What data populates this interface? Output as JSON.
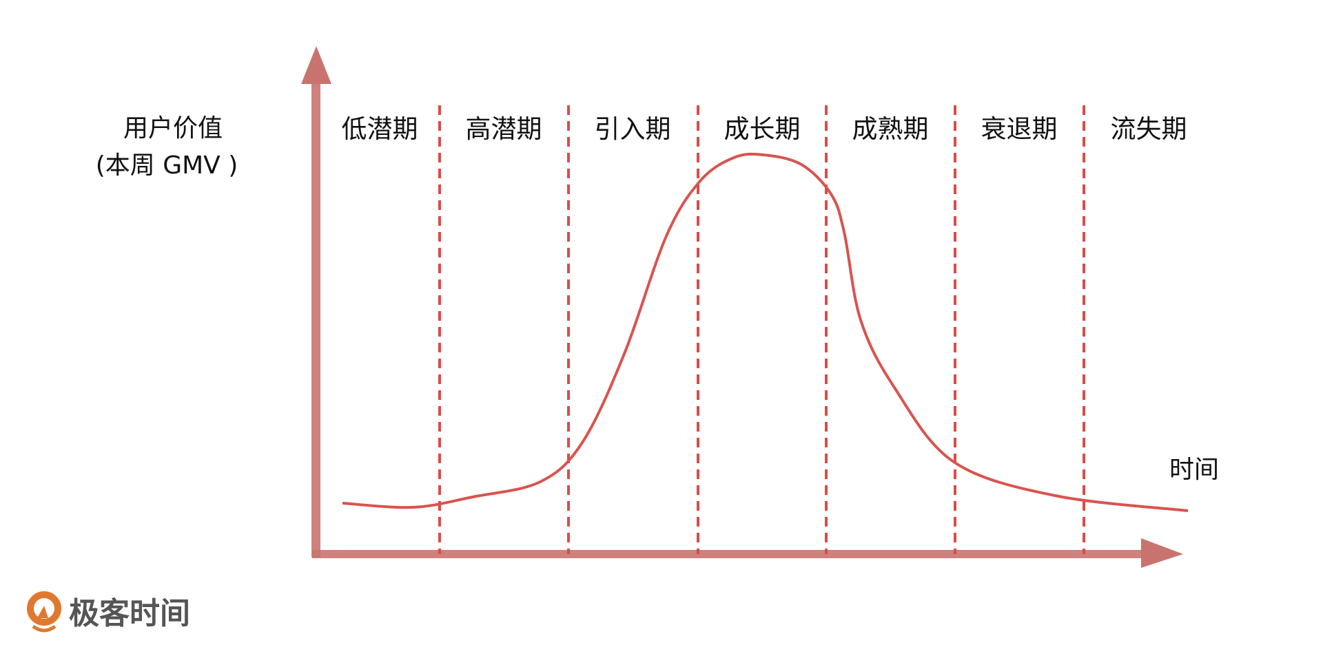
{
  "y_axis": {
    "line1": "用户价值",
    "line2": "(本周 GMV )"
  },
  "x_axis": {
    "label": "时间"
  },
  "stages": [
    "低潜期",
    "高潜期",
    "引入期",
    "成长期",
    "成熟期",
    "衰退期",
    "流失期"
  ],
  "logo": {
    "text": "极客时间"
  },
  "colors": {
    "axis": "#c9736f",
    "curve": "#d9534f",
    "divider": "#dc4b46",
    "logo_orange": "#e0782e",
    "logo_text": "#555555"
  }
}
